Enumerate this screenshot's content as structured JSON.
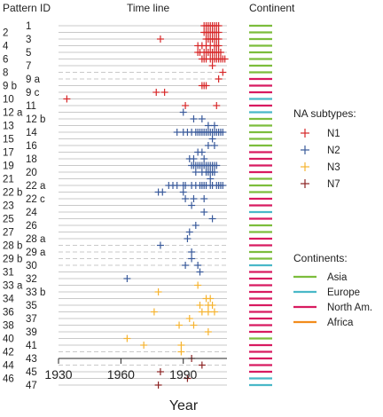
{
  "chart_data": {
    "type": "scatter",
    "headers": {
      "left": "Pattern ID",
      "middle": "Time line",
      "right": "Continent"
    },
    "xlabel": "Year",
    "xlim": [
      1930,
      2011
    ],
    "xticks": [
      1930,
      1960,
      1990
    ],
    "colors": {
      "N1": "#d62728",
      "N2": "#3a5a9a",
      "N3": "#f5b331",
      "N7": "#8b2323",
      "Asia": "#7cbd3c",
      "Europe": "#49b8c8",
      "North Am.": "#d81b60",
      "Africa": "#f28c1c"
    },
    "legend_subtypes": {
      "title": "NA subtypes:",
      "items": [
        "N1",
        "N2",
        "N3",
        "N7"
      ]
    },
    "legend_continents": {
      "title": "Continents:",
      "items": [
        "Asia",
        "Europe",
        "North Am.",
        "Africa"
      ]
    },
    "rows": [
      {
        "id": "1",
        "col": "right",
        "sub": "N1",
        "dashed": false,
        "cont": "Asia",
        "years": [
          2000,
          2001,
          2002,
          2003,
          2004,
          2005,
          2006,
          2007
        ]
      },
      {
        "id": "2",
        "col": "left",
        "sub": "N1",
        "dashed": false,
        "cont": "Asia",
        "years": [
          2000,
          2001,
          2002,
          2003,
          2004,
          2005,
          2006,
          2007
        ]
      },
      {
        "id": "3",
        "col": "right",
        "sub": "N1",
        "dashed": false,
        "cont": "Asia",
        "years": [
          1979,
          2001,
          2002,
          2003,
          2004,
          2005,
          2006,
          2007
        ]
      },
      {
        "id": "4",
        "col": "left",
        "sub": "N1",
        "dashed": false,
        "cont": "Asia",
        "years": [
          1997,
          1999,
          2001,
          2003,
          2005,
          2006,
          2007
        ]
      },
      {
        "id": "5",
        "col": "right",
        "sub": "N1",
        "dashed": false,
        "cont": "Asia",
        "years": [
          1997,
          1998,
          2000,
          2001,
          2002,
          2003,
          2004,
          2005,
          2006,
          2007,
          2008
        ]
      },
      {
        "id": "6",
        "col": "left",
        "sub": "N1",
        "dashed": false,
        "cont": "Asia",
        "years": [
          1999,
          2000,
          2001,
          2003,
          2004,
          2005,
          2006,
          2007,
          2008,
          2009,
          2010
        ]
      },
      {
        "id": "7",
        "col": "right",
        "sub": "N1",
        "dashed": false,
        "cont": "Asia",
        "years": [
          2004
        ]
      },
      {
        "id": "8",
        "col": "left",
        "sub": "N1",
        "dashed": true,
        "cont": "Asia",
        "years": [
          2009
        ]
      },
      {
        "id": "9 a",
        "col": "right",
        "sub": "N1",
        "dashed": true,
        "cont": "North Am.",
        "years": [
          2007
        ]
      },
      {
        "id": "9 b",
        "col": "left",
        "sub": "N1",
        "dashed": false,
        "cont": "North Am.",
        "years": [
          1999,
          2000,
          2001
        ]
      },
      {
        "id": "9 c",
        "col": "right",
        "sub": "N1",
        "dashed": false,
        "cont": "North Am.",
        "years": [
          1977,
          1981
        ]
      },
      {
        "id": "10",
        "col": "left",
        "sub": "N1",
        "dashed": false,
        "cont": "Europe",
        "years": [
          1934
        ]
      },
      {
        "id": "11",
        "col": "right",
        "sub": "N1",
        "dashed": false,
        "cont": "North Am.",
        "years": [
          1991,
          2006
        ]
      },
      {
        "id": "12 a",
        "col": "left",
        "sub": "N2",
        "dashed": false,
        "cont": "Europe",
        "years": [
          1990
        ]
      },
      {
        "id": "12 b",
        "col": "right",
        "sub": "N2",
        "dashed": false,
        "cont": "Asia",
        "years": [
          1995,
          1999
        ]
      },
      {
        "id": "13",
        "col": "left",
        "sub": "N2",
        "dashed": false,
        "cont": "Asia",
        "years": [
          2002,
          2005
        ]
      },
      {
        "id": "14",
        "col": "right",
        "sub": "N2",
        "dashed": false,
        "cont": "Asia",
        "years": [
          1987,
          1990,
          1992,
          1994,
          1996,
          1997,
          1998,
          1999,
          2000,
          2001,
          2002,
          2003,
          2004,
          2005,
          2006,
          2007,
          2008,
          2009
        ]
      },
      {
        "id": "15",
        "col": "left",
        "sub": "N2",
        "dashed": false,
        "cont": "Asia",
        "years": [
          2004
        ]
      },
      {
        "id": "16",
        "col": "right",
        "sub": "N2",
        "dashed": false,
        "cont": "Asia",
        "years": [
          2002,
          2005
        ]
      },
      {
        "id": "17",
        "col": "left",
        "sub": "N2",
        "dashed": false,
        "cont": "North Am.",
        "years": [
          1997,
          1999
        ]
      },
      {
        "id": "18",
        "col": "right",
        "sub": "N2",
        "dashed": false,
        "cont": "North Am.",
        "years": [
          1993,
          1995,
          2000
        ]
      },
      {
        "id": "19",
        "col": "left",
        "sub": "N2",
        "dashed": false,
        "cont": "North Am.",
        "years": [
          1994,
          1995,
          1996,
          1997,
          1998,
          1999,
          2000,
          2001,
          2002,
          2003,
          2004,
          2005,
          2006
        ]
      },
      {
        "id": "20",
        "col": "right",
        "sub": "N2",
        "dashed": false,
        "cont": "North Am.",
        "years": [
          1996,
          1999,
          2001,
          2002,
          2003,
          2004,
          2005
        ]
      },
      {
        "id": "21",
        "col": "left",
        "sub": "N2",
        "dashed": false,
        "cont": "Asia",
        "years": [
          2003
        ]
      },
      {
        "id": "22 a",
        "col": "right",
        "sub": "N2",
        "dashed": false,
        "cont": "Asia",
        "years": [
          1983,
          1985,
          1987,
          1990,
          1991,
          1994,
          1996,
          1998,
          1999,
          2000,
          2001,
          2003,
          2004,
          2006,
          2007,
          2008,
          2009
        ]
      },
      {
        "id": "22 b",
        "col": "left",
        "sub": "N2",
        "dashed": false,
        "cont": "Asia",
        "years": [
          1978,
          1980,
          1990
        ]
      },
      {
        "id": "22 c",
        "col": "right",
        "sub": "N2",
        "dashed": false,
        "cont": "North Am.",
        "years": [
          1991,
          1995,
          2000
        ]
      },
      {
        "id": "23",
        "col": "left",
        "sub": "N2",
        "dashed": false,
        "cont": "North Am.",
        "years": [
          1994
        ]
      },
      {
        "id": "24",
        "col": "right",
        "sub": "N2",
        "dashed": false,
        "cont": "Europe",
        "years": [
          2000
        ]
      },
      {
        "id": "25",
        "col": "left",
        "sub": "N2",
        "dashed": false,
        "cont": "North Am.",
        "years": [
          2004
        ]
      },
      {
        "id": "26",
        "col": "right",
        "sub": "N2",
        "dashed": false,
        "cont": "Asia",
        "years": [
          1996
        ]
      },
      {
        "id": "27",
        "col": "left",
        "sub": "N2",
        "dashed": false,
        "cont": "Asia",
        "years": [
          1993
        ]
      },
      {
        "id": "28 a",
        "col": "right",
        "sub": "N2",
        "dashed": false,
        "cont": "North Am.",
        "years": [
          1992
        ]
      },
      {
        "id": "28 b",
        "col": "left",
        "sub": "N2",
        "dashed": true,
        "cont": "North Am.",
        "years": [
          1979
        ]
      },
      {
        "id": "29 a",
        "col": "right",
        "sub": "N2",
        "dashed": true,
        "cont": "Asia",
        "years": [
          1994
        ]
      },
      {
        "id": "29 b",
        "col": "left",
        "sub": "N2",
        "dashed": true,
        "cont": "Asia",
        "years": [
          1994
        ]
      },
      {
        "id": "30",
        "col": "right",
        "sub": "N2",
        "dashed": true,
        "cont": "Europe",
        "years": [
          1991,
          1997
        ]
      },
      {
        "id": "31",
        "col": "left",
        "sub": "N2",
        "dashed": false,
        "cont": "North Am.",
        "years": [
          1998
        ]
      },
      {
        "id": "32",
        "col": "right",
        "sub": "N2",
        "dashed": false,
        "cont": "North Am.",
        "years": [
          1963
        ]
      },
      {
        "id": "33 a",
        "col": "left",
        "sub": "N3",
        "dashed": false,
        "cont": "North Am.",
        "years": [
          1997
        ]
      },
      {
        "id": "33 b",
        "col": "right",
        "sub": "N3",
        "dashed": false,
        "cont": "North Am.",
        "years": [
          1978
        ]
      },
      {
        "id": "34",
        "col": "left",
        "sub": "N3",
        "dashed": false,
        "cont": "North Am.",
        "years": [
          2001,
          2003
        ]
      },
      {
        "id": "35",
        "col": "right",
        "sub": "N3",
        "dashed": false,
        "cont": "North Am.",
        "years": [
          1998,
          2002,
          2004
        ]
      },
      {
        "id": "36",
        "col": "left",
        "sub": "N3",
        "dashed": false,
        "cont": "North Am.",
        "years": [
          1976,
          1999,
          2002,
          2005
        ]
      },
      {
        "id": "37",
        "col": "right",
        "sub": "N3",
        "dashed": false,
        "cont": "North Am.",
        "years": [
          1993
        ]
      },
      {
        "id": "38",
        "col": "left",
        "sub": "N3",
        "dashed": false,
        "cont": "North Am.",
        "years": [
          1988,
          1995
        ]
      },
      {
        "id": "39",
        "col": "right",
        "sub": "N3",
        "dashed": false,
        "cont": "North Am.",
        "years": [
          2002
        ]
      },
      {
        "id": "40",
        "col": "left",
        "sub": "N3",
        "dashed": false,
        "cont": "Asia",
        "years": [
          1963
        ]
      },
      {
        "id": "41",
        "col": "right",
        "sub": "N3",
        "dashed": false,
        "cont": "North Am.",
        "years": [
          1971,
          1989
        ]
      },
      {
        "id": "42",
        "col": "left",
        "sub": "N3",
        "dashed": true,
        "cont": "North Am.",
        "years": [
          1989
        ]
      },
      {
        "id": "43",
        "col": "right",
        "sub": "N7",
        "dashed": true,
        "cont": "North Am.",
        "years": [
          1994
        ]
      },
      {
        "id": "44",
        "col": "left",
        "sub": "N7",
        "dashed": true,
        "cont": "North Am.",
        "years": [
          1999
        ]
      },
      {
        "id": "45",
        "col": "right",
        "sub": "N7",
        "dashed": false,
        "cont": "North Am.",
        "years": [
          1979
        ]
      },
      {
        "id": "46",
        "col": "left",
        "sub": "N7",
        "dashed": false,
        "cont": "Europe",
        "years": [
          1992
        ]
      },
      {
        "id": "47",
        "col": "right",
        "sub": "N7",
        "dashed": false,
        "cont": "Europe",
        "years": [
          1978
        ]
      }
    ]
  }
}
